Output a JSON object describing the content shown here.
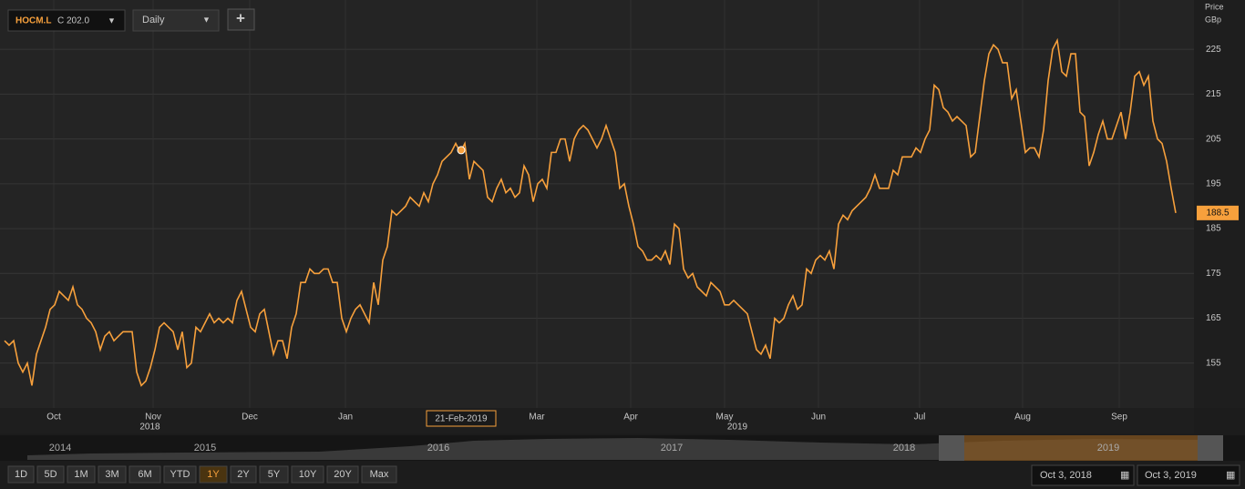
{
  "header": {
    "symbol": "HOCM.L",
    "close": "C 202.0",
    "interval": "Daily",
    "add": "+"
  },
  "chart_data": {
    "type": "line",
    "axis_title": [
      "Price",
      "GBp"
    ],
    "series": [
      {
        "name": "HOCM.L",
        "color": "#f7a03c",
        "values": [
          160,
          159,
          160,
          155,
          153,
          155,
          150,
          157,
          160,
          163,
          167,
          168,
          171,
          170,
          169,
          172,
          168,
          167,
          165,
          164,
          162,
          158,
          161,
          162,
          160,
          161,
          162,
          162,
          162,
          153,
          150,
          151,
          154,
          158,
          163,
          164,
          163,
          162,
          158,
          162,
          154,
          155,
          163,
          162,
          164,
          166,
          164,
          165,
          164,
          165,
          164,
          169,
          171,
          167,
          163,
          162,
          166,
          167,
          162,
          157,
          160,
          160,
          156,
          163,
          166,
          173,
          173,
          176,
          175,
          175,
          176,
          176,
          173,
          173,
          165,
          162,
          165,
          167,
          168,
          166,
          164,
          173,
          168,
          178,
          181,
          189,
          188,
          189,
          190,
          192,
          191,
          190,
          193,
          191,
          195,
          197,
          200,
          201,
          202,
          204,
          202,
          204,
          196,
          200,
          199,
          198,
          192,
          191,
          194,
          196,
          193,
          194,
          192,
          193,
          199,
          197,
          191,
          195,
          196,
          194,
          202,
          202,
          205,
          205,
          200,
          205,
          207,
          208,
          207,
          205,
          203,
          205,
          208,
          205,
          202,
          194,
          195,
          190,
          186,
          181,
          180,
          178,
          178,
          179,
          178,
          180,
          177,
          186,
          185,
          176,
          174,
          175,
          172,
          171,
          170,
          173,
          172,
          171,
          168,
          168,
          169,
          168,
          167,
          166,
          162,
          158,
          157,
          159,
          156,
          165,
          164,
          165,
          168,
          170,
          167,
          168,
          176,
          175,
          178,
          179,
          178,
          180,
          176,
          186,
          188,
          187,
          189,
          190,
          191,
          192,
          194,
          197,
          194,
          194,
          194,
          198,
          197,
          201,
          201,
          201,
          203,
          202,
          205,
          207,
          217,
          216,
          212,
          211,
          209,
          210,
          209,
          208,
          201,
          202,
          210,
          218,
          224,
          226,
          225,
          222,
          222,
          214,
          216,
          209,
          202,
          203,
          203,
          201,
          207,
          218,
          225,
          227,
          220,
          219,
          224,
          224,
          211,
          210,
          199,
          202,
          206,
          209,
          205,
          205,
          208,
          211,
          205,
          211,
          219,
          220,
          217,
          219,
          209,
          205,
          204,
          200,
          194,
          188.5
        ]
      }
    ],
    "xlim": [
      -1,
      258
    ],
    "ylim": [
      145,
      236
    ],
    "yticks": [
      155,
      165,
      175,
      185,
      195,
      205,
      215,
      225
    ],
    "xticks": [
      {
        "value": 10.8,
        "label": "Oct"
      },
      {
        "value": 32.6,
        "label": "Nov"
      },
      {
        "value": 53.8,
        "label": "Dec"
      },
      {
        "value": 74.8,
        "label": "Jan"
      },
      {
        "value": 116.8,
        "label": "Mar"
      },
      {
        "value": 137.4,
        "label": "Apr"
      },
      {
        "value": 158,
        "label": "May"
      },
      {
        "value": 178.6,
        "label": "Jun"
      },
      {
        "value": 200.8,
        "label": "Jul"
      },
      {
        "value": 223.4,
        "label": "Aug"
      },
      {
        "value": 244.6,
        "label": "Sep"
      }
    ],
    "year_labels": [
      {
        "value": 31.9,
        "label": "2018"
      },
      {
        "value": 160.8,
        "label": "2019"
      }
    ],
    "crosshair": {
      "x": 100.2,
      "value": 202.5,
      "label": "21-Feb-2019"
    },
    "grid": true
  },
  "navigator": {
    "years": [
      "2014",
      "2015",
      "2016",
      "2017",
      "2018",
      "2019"
    ]
  },
  "range_buttons": [
    "1D",
    "5D",
    "1M",
    "3M",
    "6M",
    "YTD",
    "1Y",
    "2Y",
    "5Y",
    "10Y",
    "20Y",
    "Max"
  ],
  "active_range": "1Y",
  "date_from": "Oct 3, 2018",
  "date_to": "Oct 3, 2019"
}
